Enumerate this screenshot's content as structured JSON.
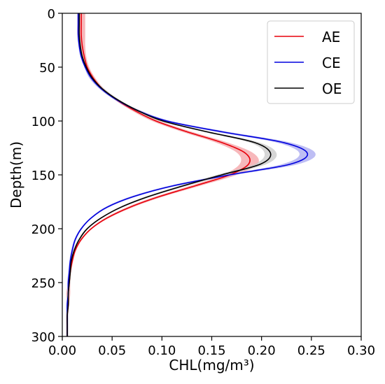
{
  "chart_data": {
    "type": "line",
    "title": "",
    "xlabel": "CHL(mg/m³)",
    "ylabel": "Depth(m)",
    "xlim": [
      0,
      0.3
    ],
    "ylim": [
      300,
      0
    ],
    "y_inverted": true,
    "grid": false,
    "legend": "top-right",
    "xticks": [
      "0.00",
      "0.05",
      "0.10",
      "0.15",
      "0.20",
      "0.25",
      "0.30"
    ],
    "xtick_values": [
      0,
      0.05,
      0.1,
      0.15,
      0.2,
      0.25,
      0.3
    ],
    "yticks": [
      "0",
      "50",
      "100",
      "150",
      "200",
      "250",
      "300"
    ],
    "ytick_values": [
      0,
      50,
      100,
      150,
      200,
      250,
      300
    ],
    "depth": [
      0,
      10,
      20,
      30,
      40,
      50,
      60,
      70,
      80,
      90,
      100,
      110,
      120,
      130,
      140,
      150,
      160,
      170,
      180,
      190,
      200,
      210,
      220,
      230,
      240,
      250,
      260,
      270,
      280,
      290,
      300
    ],
    "series": [
      {
        "name": "AE",
        "color": "#e8000b",
        "band_color": "#f4a0a4",
        "values": [
          0.019,
          0.019,
          0.019,
          0.02,
          0.022,
          0.025,
          0.031,
          0.04,
          0.054,
          0.072,
          0.094,
          0.125,
          0.16,
          0.184,
          0.187,
          0.168,
          0.134,
          0.098,
          0.068,
          0.045,
          0.029,
          0.019,
          0.013,
          0.01,
          0.008,
          0.007,
          0.006,
          0.006,
          0.005,
          0.005,
          0.005
        ],
        "band": [
          0.004,
          0.004,
          0.004,
          0.003,
          0.002,
          0.002,
          0.002,
          0.002,
          0.002,
          0.003,
          0.004,
          0.005,
          0.006,
          0.008,
          0.009,
          0.007,
          0.005,
          0.004,
          0.003,
          0.002,
          0.001,
          0.001,
          0.001,
          0.001,
          0.001,
          0.001,
          0.002,
          0.001,
          0.001,
          0.001,
          0.001
        ]
      },
      {
        "name": "CE",
        "color": "#0000dd",
        "band_color": "#a8a8f0",
        "values": [
          0.016,
          0.016,
          0.016,
          0.017,
          0.019,
          0.023,
          0.029,
          0.039,
          0.054,
          0.075,
          0.105,
          0.16,
          0.222,
          0.246,
          0.229,
          0.168,
          0.112,
          0.072,
          0.045,
          0.029,
          0.019,
          0.013,
          0.01,
          0.008,
          0.007,
          0.006,
          0.006,
          0.005,
          0.005,
          0.005,
          0.005
        ],
        "band": [
          0.001,
          0.001,
          0.001,
          0.001,
          0.001,
          0.001,
          0.002,
          0.002,
          0.002,
          0.003,
          0.004,
          0.006,
          0.007,
          0.008,
          0.008,
          0.006,
          0.004,
          0.003,
          0.002,
          0.001,
          0.001,
          0.001,
          0.001,
          0.001,
          0.001,
          0.001,
          0.001,
          0.001,
          0.001,
          0.001,
          0.001
        ]
      },
      {
        "name": "OE",
        "color": "#000000",
        "band_color": "#c8c8c8",
        "values": [
          0.017,
          0.017,
          0.017,
          0.018,
          0.02,
          0.024,
          0.03,
          0.04,
          0.055,
          0.075,
          0.101,
          0.145,
          0.193,
          0.209,
          0.199,
          0.16,
          0.122,
          0.087,
          0.059,
          0.039,
          0.025,
          0.017,
          0.012,
          0.009,
          0.008,
          0.007,
          0.006,
          0.006,
          0.005,
          0.005,
          0.005
        ],
        "band": [
          0.001,
          0.001,
          0.001,
          0.001,
          0.001,
          0.001,
          0.001,
          0.002,
          0.002,
          0.002,
          0.003,
          0.004,
          0.005,
          0.006,
          0.006,
          0.005,
          0.004,
          0.003,
          0.002,
          0.001,
          0.001,
          0.001,
          0.001,
          0.001,
          0.001,
          0.001,
          0.001,
          0.001,
          0.001,
          0.001,
          0.001
        ]
      }
    ]
  }
}
